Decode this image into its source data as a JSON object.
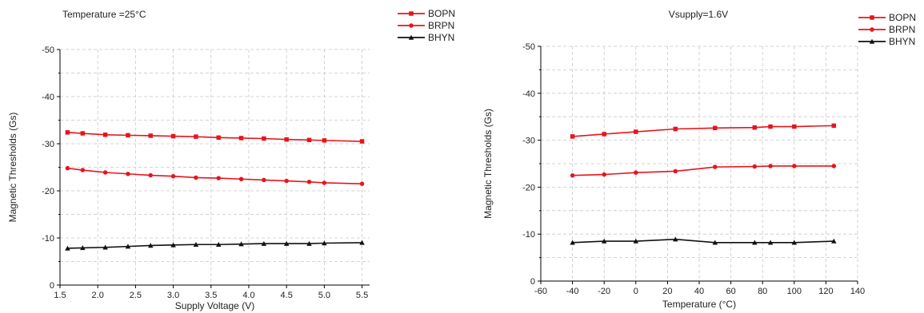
{
  "chart_data": [
    {
      "type": "line",
      "title": "Temperature =25°C",
      "xlabel": "Supply Voltage (V)",
      "ylabel": "Magnetic Thresholds (Gs)",
      "xlim": [
        1.5,
        5.6
      ],
      "ylim": [
        0,
        -50
      ],
      "y_reversed": true,
      "grid": true,
      "grid_style": "dashed",
      "legend_position": "top-right",
      "x_ticks": [
        "1.5",
        "2.0",
        "2.5",
        "3.0",
        "3.5",
        "4.0",
        "4.5",
        "5.0",
        "5.5"
      ],
      "y_ticks": [
        "0",
        "-10",
        "-20",
        "-30",
        "-40",
        "-50"
      ],
      "x": [
        1.6,
        1.8,
        2.1,
        2.4,
        2.7,
        3.0,
        3.3,
        3.6,
        3.9,
        4.2,
        4.5,
        4.8,
        5.0,
        5.5
      ],
      "series": [
        {
          "name": "BOPN",
          "color": "#e8141c",
          "marker": "square",
          "values": [
            -32.4,
            -32.2,
            -31.9,
            -31.8,
            -31.7,
            -31.6,
            -31.5,
            -31.3,
            -31.2,
            -31.1,
            -30.9,
            -30.8,
            -30.7,
            -30.5
          ]
        },
        {
          "name": "BRPN",
          "color": "#e8141c",
          "marker": "circle",
          "values": [
            -24.8,
            -24.4,
            -23.9,
            -23.6,
            -23.3,
            -23.1,
            -22.8,
            -22.7,
            -22.5,
            -22.3,
            -22.1,
            -21.9,
            -21.7,
            -21.5
          ]
        },
        {
          "name": "BHYN",
          "color": "#111111",
          "marker": "triangle",
          "values": [
            -7.8,
            -7.9,
            -8.0,
            -8.2,
            -8.4,
            -8.5,
            -8.6,
            -8.6,
            -8.7,
            -8.8,
            -8.8,
            -8.8,
            -8.9,
            -9.0
          ]
        }
      ]
    },
    {
      "type": "line",
      "title": "Vsupply=1.6V",
      "xlabel": "Temperature (°C)",
      "ylabel": "Magnetic Thresholds (Gs)",
      "xlim": [
        -60,
        140
      ],
      "ylim": [
        0,
        -50
      ],
      "y_reversed": true,
      "grid": true,
      "grid_style": "dashed",
      "legend_position": "top-right",
      "x_ticks": [
        "-60",
        "-40",
        "-20",
        "0",
        "20",
        "40",
        "60",
        "80",
        "100",
        "120",
        "140"
      ],
      "y_ticks": [
        "0",
        "-10",
        "-20",
        "-30",
        "-40",
        "-50"
      ],
      "x": [
        -40,
        -20,
        0,
        25,
        50,
        75,
        85,
        100,
        125
      ],
      "series": [
        {
          "name": "BOPN",
          "color": "#e8141c",
          "marker": "square",
          "values": [
            -30.8,
            -31.3,
            -31.8,
            -32.4,
            -32.6,
            -32.7,
            -32.9,
            -32.9,
            -33.1
          ]
        },
        {
          "name": "BRPN",
          "color": "#e8141c",
          "marker": "circle",
          "values": [
            -22.5,
            -22.7,
            -23.1,
            -23.4,
            -24.3,
            -24.4,
            -24.5,
            -24.5,
            -24.5
          ]
        },
        {
          "name": "BHYN",
          "color": "#111111",
          "marker": "triangle",
          "values": [
            -8.2,
            -8.5,
            -8.5,
            -8.9,
            -8.2,
            -8.2,
            -8.2,
            -8.2,
            -8.5
          ]
        }
      ]
    }
  ]
}
